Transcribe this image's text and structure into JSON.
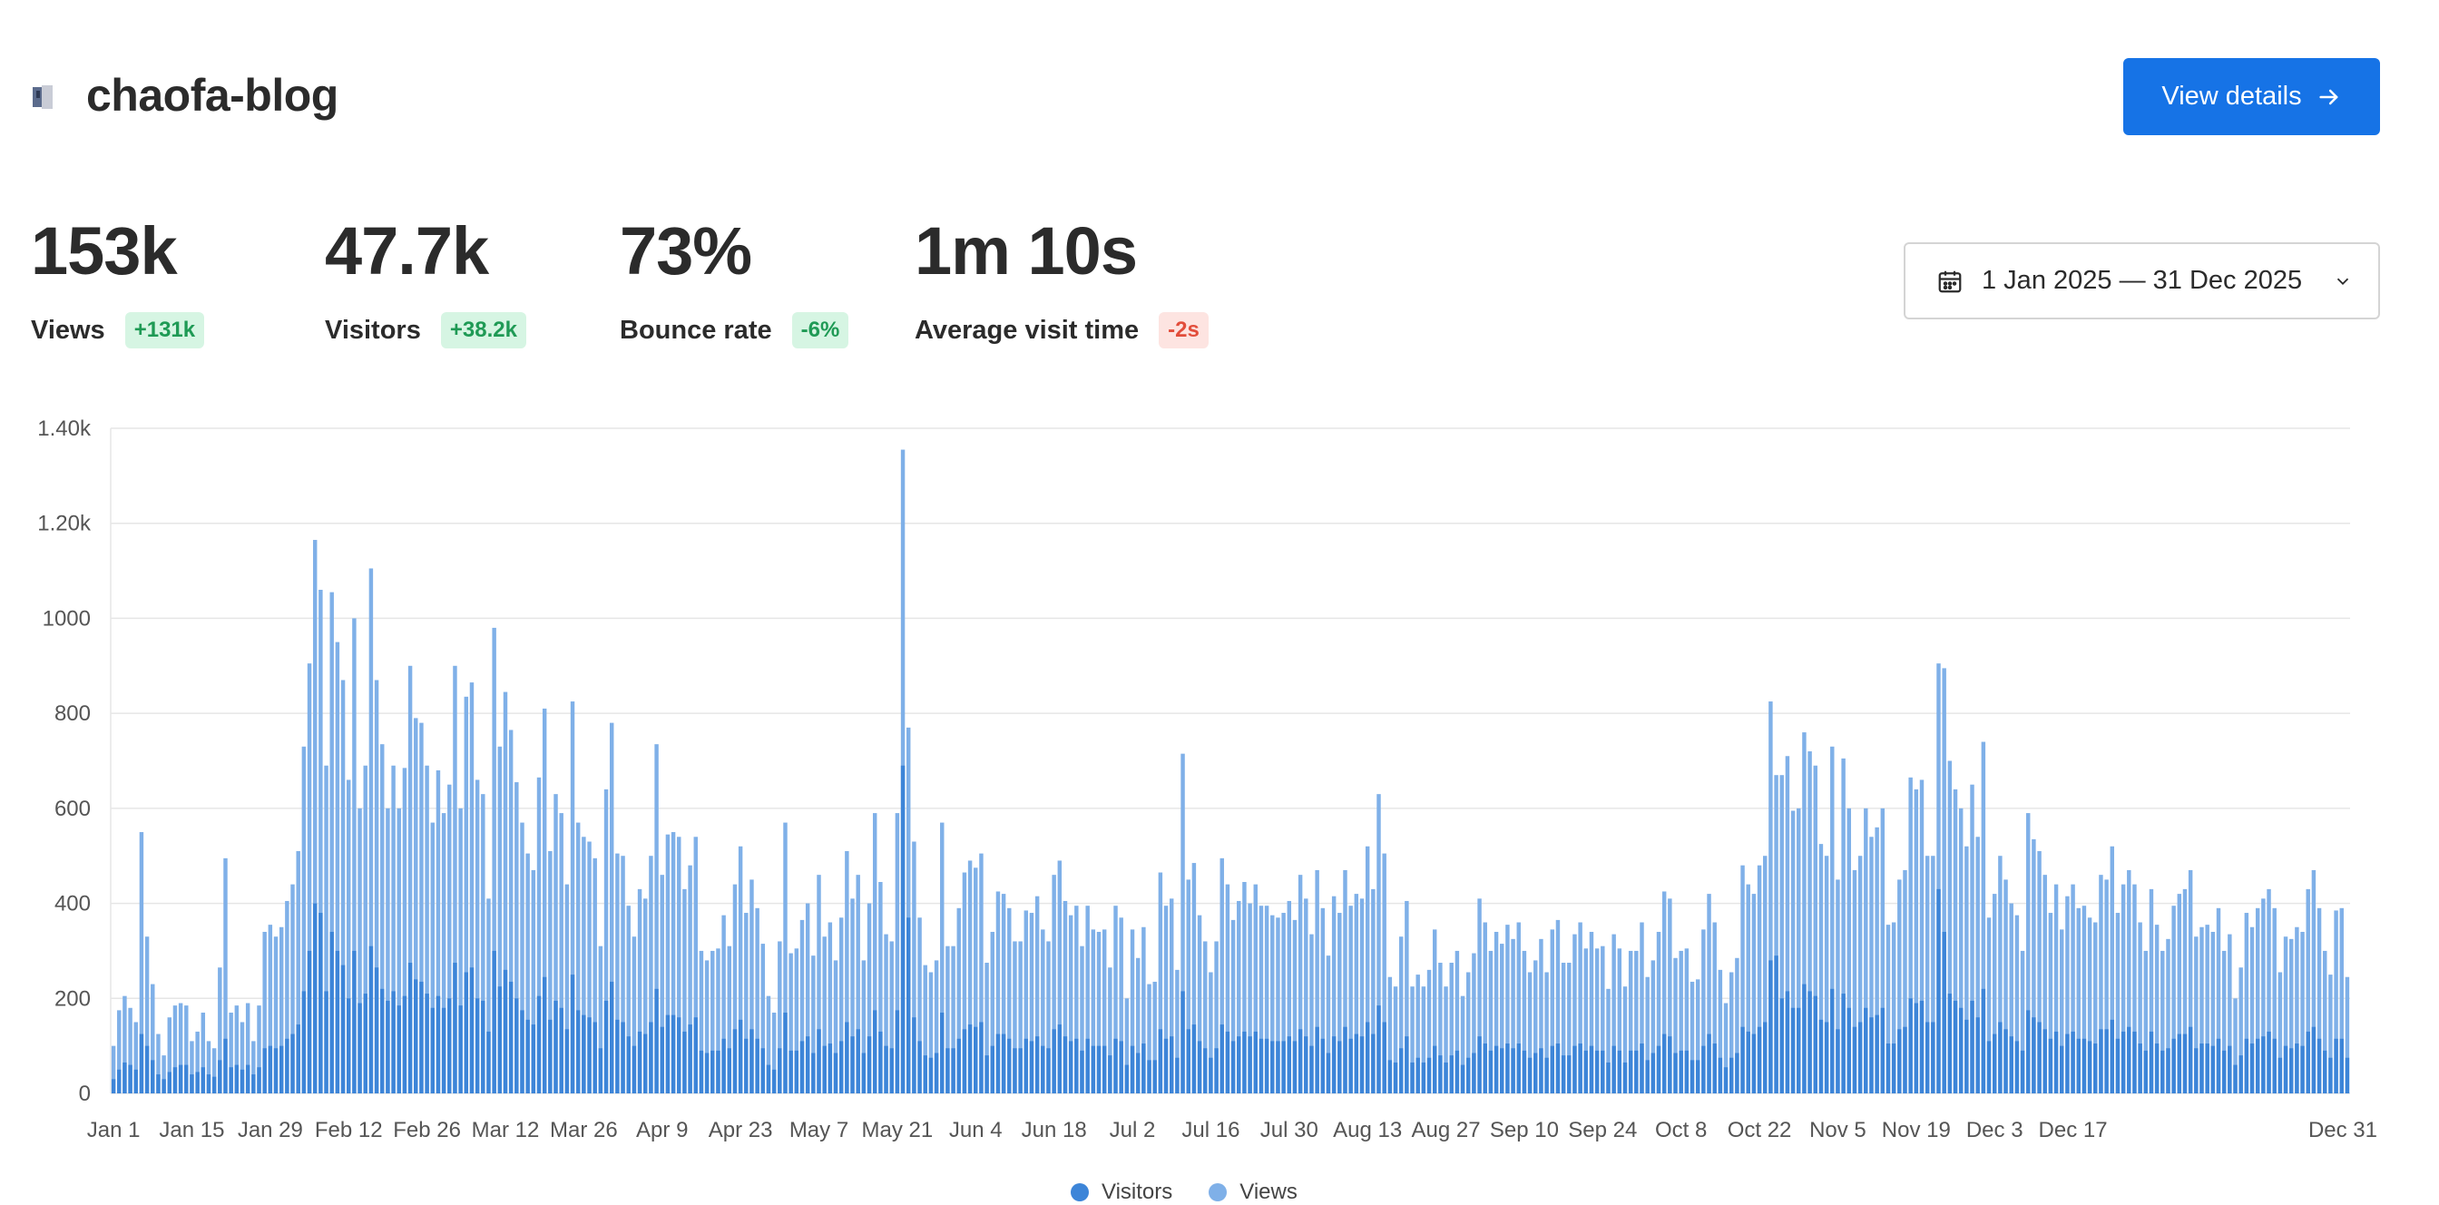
{
  "header": {
    "title": "chaofa-blog",
    "details_label": "View details"
  },
  "metrics": [
    {
      "value": "153k",
      "label": "Views",
      "change": "+131k",
      "trend": "up"
    },
    {
      "value": "47.7k",
      "label": "Visitors",
      "change": "+38.2k",
      "trend": "up"
    },
    {
      "value": "73%",
      "label": "Bounce rate",
      "change": "-6%",
      "trend": "up"
    },
    {
      "value": "1m 10s",
      "label": "Average visit time",
      "change": "-2s",
      "trend": "down"
    }
  ],
  "date_range": {
    "label": "1 Jan 2025 — 31 Dec 2025"
  },
  "colors": {
    "accent": "#1673e6",
    "views": "#7fb0e8",
    "visitors": "#3d85d8",
    "grid": "#e6e6e6"
  },
  "chart_data": {
    "type": "bar",
    "stacked": "overlay",
    "xlabel": "",
    "ylabel": "",
    "ylim": [
      0,
      1400
    ],
    "yticks": [
      "0",
      "200",
      "400",
      "600",
      "800",
      "1000",
      "1.20k",
      "1.40k"
    ],
    "xticks": [
      "Jan 1",
      "Jan 15",
      "Jan 29",
      "Feb 12",
      "Feb 26",
      "Mar 12",
      "Mar 26",
      "Apr 9",
      "Apr 23",
      "May 7",
      "May 21",
      "Jun 4",
      "Jun 18",
      "Jul 2",
      "Jul 16",
      "Jul 30",
      "Aug 13",
      "Aug 27",
      "Sep 10",
      "Sep 24",
      "Oct 8",
      "Oct 22",
      "Nov 5",
      "Nov 19",
      "Dec 3",
      "Dec 17",
      "Dec 31"
    ],
    "legend": [
      "Visitors",
      "Views"
    ],
    "legend_position": "bottom",
    "grid": true,
    "series": [
      {
        "name": "Views",
        "values": [
          100,
          175,
          205,
          180,
          150,
          550,
          330,
          230,
          125,
          80,
          160,
          185,
          190,
          185,
          110,
          130,
          170,
          110,
          95,
          265,
          495,
          170,
          185,
          150,
          190,
          110,
          185,
          340,
          355,
          330,
          350,
          405,
          440,
          510,
          730,
          905,
          1165,
          1060,
          690,
          1055,
          950,
          870,
          660,
          1000,
          600,
          690,
          1105,
          870,
          735,
          600,
          690,
          600,
          685,
          900,
          790,
          780,
          690,
          570,
          680,
          590,
          650,
          900,
          600,
          835,
          865,
          660,
          630,
          410,
          980,
          730,
          845,
          765,
          655,
          570,
          505,
          470,
          665,
          810,
          510,
          630,
          590,
          440,
          825,
          570,
          540,
          530,
          495,
          310,
          640,
          780,
          505,
          500,
          395,
          330,
          430,
          410,
          500,
          735,
          460,
          545,
          550,
          540,
          430,
          480,
          540,
          300,
          280,
          300,
          305,
          375,
          310,
          440,
          520,
          380,
          450,
          390,
          315,
          205,
          170,
          320,
          570,
          295,
          305,
          365,
          400,
          290,
          460,
          330,
          360,
          280,
          370,
          510,
          410,
          460,
          280,
          400,
          590,
          445,
          335,
          320,
          590,
          1355,
          770,
          530,
          370,
          270,
          255,
          280,
          570,
          310,
          310,
          390,
          465,
          490,
          475,
          505,
          275,
          340,
          425,
          420,
          390,
          320,
          320,
          385,
          380,
          415,
          345,
          320,
          460,
          490,
          405,
          375,
          395,
          310,
          395,
          345,
          340,
          345,
          265,
          395,
          370,
          200,
          345,
          285,
          350,
          230,
          235,
          465,
          395,
          410,
          260,
          715,
          450,
          485,
          375,
          320,
          255,
          320,
          495,
          440,
          365,
          405,
          445,
          400,
          440,
          395,
          395,
          375,
          370,
          380,
          405,
          365,
          460,
          410,
          335,
          470,
          390,
          290,
          415,
          380,
          470,
          395,
          420,
          410,
          520,
          430,
          630,
          505,
          245,
          225,
          330,
          405,
          225,
          250,
          225,
          260,
          345,
          275,
          225,
          275,
          300,
          205,
          255,
          295,
          410,
          360,
          300,
          340,
          315,
          355,
          325,
          360,
          300,
          255,
          280,
          325,
          255,
          345,
          365,
          275,
          275,
          335,
          360,
          305,
          340,
          305,
          310,
          220,
          335,
          305,
          225,
          300,
          300,
          360,
          245,
          280,
          340,
          425,
          410,
          285,
          300,
          305,
          235,
          240,
          345,
          420,
          360,
          260,
          190,
          255,
          285,
          480,
          440,
          420,
          480,
          500,
          825,
          670,
          670,
          710,
          595,
          600,
          760,
          720,
          690,
          525,
          500,
          730,
          450,
          705,
          600,
          470,
          500,
          600,
          540,
          560,
          600,
          355,
          360,
          450,
          470,
          665,
          640,
          660,
          500,
          500,
          905,
          895,
          700,
          640,
          600,
          520,
          650,
          540,
          740,
          370,
          420,
          500,
          450,
          400,
          375,
          300,
          590,
          535,
          510,
          460,
          380,
          440,
          345,
          415,
          440,
          390,
          395,
          370,
          360,
          460,
          450,
          520,
          380,
          440,
          470,
          440,
          360,
          300,
          430,
          355,
          300,
          325,
          395,
          420,
          430,
          470,
          330,
          350,
          355,
          340,
          390,
          300,
          335,
          200,
          265,
          380,
          350,
          390,
          410,
          430,
          390,
          255,
          330,
          325,
          350,
          340,
          430,
          470,
          390,
          300,
          250,
          385,
          390,
          245
        ]
      },
      {
        "name": "Visitors",
        "values": [
          30,
          50,
          65,
          60,
          50,
          125,
          100,
          70,
          40,
          30,
          45,
          55,
          60,
          60,
          40,
          45,
          55,
          40,
          35,
          70,
          115,
          55,
          60,
          50,
          60,
          40,
          55,
          95,
          100,
          95,
          100,
          115,
          125,
          145,
          215,
          300,
          400,
          380,
          215,
          340,
          300,
          270,
          200,
          300,
          190,
          210,
          310,
          265,
          220,
          195,
          215,
          185,
          205,
          275,
          240,
          235,
          210,
          180,
          205,
          180,
          200,
          275,
          185,
          255,
          265,
          200,
          195,
          130,
          300,
          225,
          260,
          235,
          200,
          175,
          155,
          145,
          205,
          245,
          155,
          195,
          180,
          135,
          250,
          175,
          165,
          160,
          150,
          95,
          195,
          235,
          155,
          150,
          120,
          100,
          130,
          125,
          150,
          220,
          140,
          165,
          165,
          160,
          130,
          145,
          160,
          90,
          85,
          90,
          90,
          115,
          95,
          135,
          155,
          115,
          135,
          115,
          95,
          60,
          50,
          95,
          170,
          90,
          90,
          110,
          120,
          85,
          135,
          100,
          105,
          85,
          110,
          150,
          120,
          135,
          85,
          120,
          175,
          130,
          100,
          95,
          175,
          690,
          370,
          160,
          110,
          80,
          75,
          85,
          170,
          95,
          95,
          115,
          135,
          145,
          140,
          150,
          80,
          100,
          125,
          125,
          115,
          95,
          95,
          115,
          110,
          120,
          100,
          95,
          135,
          145,
          120,
          110,
          115,
          90,
          115,
          100,
          100,
          100,
          80,
          115,
          110,
          60,
          100,
          85,
          105,
          70,
          70,
          135,
          115,
          120,
          75,
          215,
          135,
          145,
          110,
          95,
          75,
          95,
          145,
          130,
          110,
          120,
          130,
          120,
          130,
          115,
          115,
          110,
          110,
          110,
          120,
          110,
          135,
          120,
          100,
          140,
          115,
          85,
          120,
          110,
          140,
          115,
          125,
          120,
          150,
          125,
          185,
          150,
          70,
          65,
          95,
          120,
          65,
          75,
          65,
          75,
          100,
          80,
          65,
          80,
          90,
          60,
          75,
          85,
          120,
          105,
          90,
          100,
          95,
          105,
          95,
          105,
          90,
          75,
          85,
          95,
          75,
          100,
          105,
          80,
          80,
          100,
          105,
          90,
          100,
          90,
          90,
          65,
          100,
          90,
          65,
          90,
          90,
          105,
          70,
          85,
          100,
          125,
          120,
          85,
          90,
          90,
          70,
          70,
          100,
          125,
          105,
          75,
          55,
          75,
          85,
          140,
          130,
          125,
          140,
          150,
          280,
          290,
          200,
          215,
          180,
          180,
          230,
          215,
          205,
          155,
          150,
          220,
          135,
          210,
          180,
          140,
          150,
          180,
          160,
          165,
          180,
          105,
          105,
          135,
          140,
          200,
          190,
          195,
          150,
          150,
          430,
          340,
          210,
          195,
          180,
          155,
          195,
          160,
          220,
          110,
          125,
          150,
          135,
          120,
          110,
          90,
          175,
          160,
          150,
          135,
          115,
          130,
          100,
          125,
          130,
          115,
          115,
          110,
          105,
          135,
          135,
          155,
          115,
          130,
          140,
          130,
          105,
          90,
          130,
          105,
          90,
          95,
          115,
          125,
          125,
          140,
          95,
          105,
          105,
          100,
          115,
          90,
          100,
          60,
          80,
          115,
          105,
          115,
          120,
          130,
          115,
          75,
          100,
          95,
          105,
          100,
          130,
          140,
          115,
          90,
          75,
          115,
          115,
          75
        ]
      }
    ]
  }
}
